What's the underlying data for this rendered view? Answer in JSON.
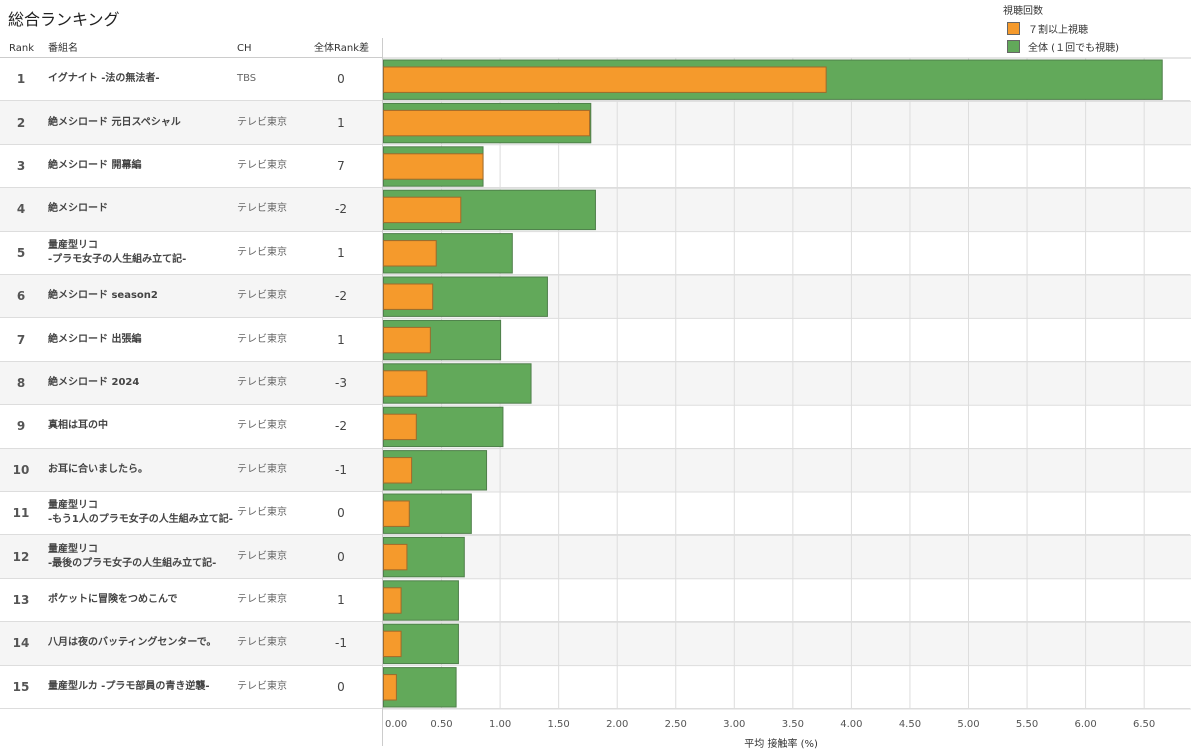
{
  "title": "総合ランキング",
  "legend": {
    "title": "視聴回数",
    "items": [
      {
        "label": "７割以上視聴",
        "color": "#f59a2c"
      },
      {
        "label": "全体 (１回でも視聴)",
        "color": "#62a95a"
      }
    ]
  },
  "headers": {
    "rank": "Rank",
    "name": "番組名",
    "ch": "CH",
    "diff": "全体Rank差"
  },
  "chart_data": {
    "type": "bar",
    "orientation": "horizontal",
    "xlabel": "平均 接触率 (%)",
    "xlim": [
      0,
      6.9
    ],
    "ticks": [
      "0.00",
      "0.50",
      "1.00",
      "1.50",
      "2.00",
      "2.50",
      "3.00",
      "3.50",
      "4.00",
      "4.50",
      "5.00",
      "5.50",
      "6.00",
      "6.50"
    ],
    "categories": [
      "イグナイト -法の無法者-",
      "絶メシロード 元日スペシャル",
      "絶メシロード 開幕編",
      "絶メシロード",
      "量産型リコ\n-プラモ女子の人生組み立て記-",
      "絶メシロード season2",
      "絶メシロード 出張編",
      "絶メシロード 2024",
      "真相は耳の中",
      "お耳に合いましたら。",
      "量産型リコ\n-もう1人のプラモ女子の人生組み立て記-",
      "量産型リコ\n-最後のプラモ女子の人生組み立て記-",
      "ポケットに冒険をつめこんで",
      "八月は夜のバッティングセンターで。",
      "量産型ルカ -プラモ部員の青き逆襲-"
    ],
    "ranks": [
      "1",
      "2",
      "3",
      "4",
      "5",
      "6",
      "7",
      "8",
      "9",
      "10",
      "11",
      "12",
      "13",
      "14",
      "15"
    ],
    "channels": [
      "TBS",
      "テレビ東京",
      "テレビ東京",
      "テレビ東京",
      "テレビ東京",
      "テレビ東京",
      "テレビ東京",
      "テレビ東京",
      "テレビ東京",
      "テレビ東京",
      "テレビ東京",
      "テレビ東京",
      "テレビ東京",
      "テレビ東京",
      "テレビ東京"
    ],
    "rank_diff": [
      "0",
      "1",
      "7",
      "-2",
      "1",
      "-2",
      "1",
      "-3",
      "-2",
      "-1",
      "0",
      "0",
      "1",
      "-1",
      "0"
    ],
    "series": [
      {
        "name": "全体 (１回でも視聴)",
        "values": [
          6.65,
          1.77,
          0.85,
          1.81,
          1.1,
          1.4,
          1.0,
          1.26,
          1.02,
          0.88,
          0.75,
          0.69,
          0.64,
          0.64,
          0.62
        ]
      },
      {
        "name": "７割以上視聴",
        "values": [
          3.78,
          1.76,
          0.85,
          0.66,
          0.45,
          0.42,
          0.4,
          0.37,
          0.28,
          0.24,
          0.22,
          0.2,
          0.15,
          0.15,
          0.11
        ]
      }
    ]
  }
}
